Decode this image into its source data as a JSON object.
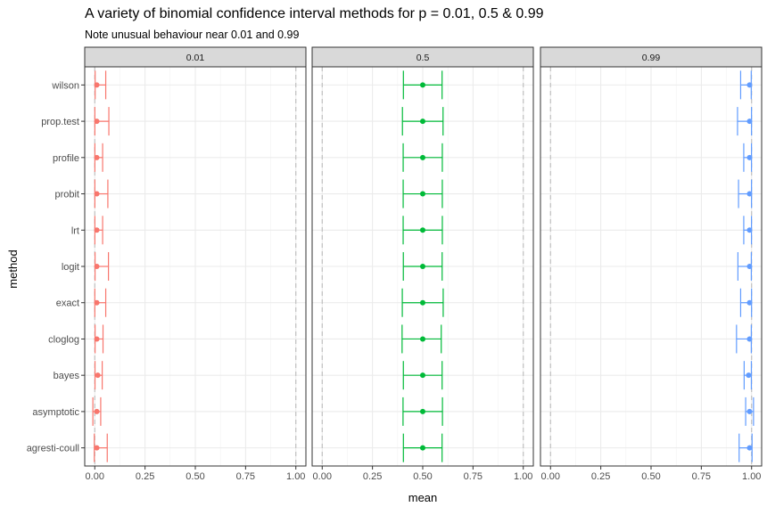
{
  "chart_data": {
    "type": "errorbar",
    "title": "A variety of binomial confidence interval methods for p = 0.01, 0.5 & 0.99",
    "subtitle": "Note unusual behaviour near 0.01 and 0.99",
    "xlabel": "mean",
    "ylabel": "method",
    "xlim": [
      -0.05,
      1.05
    ],
    "xticks": [
      "0.00",
      "0.25",
      "0.50",
      "0.75",
      "1.00"
    ],
    "xtick_values": [
      0,
      0.25,
      0.5,
      0.75,
      1.0
    ],
    "reference_lines": [
      0,
      1
    ],
    "grid": true,
    "legend": "none",
    "methods": [
      "wilson",
      "prop.test",
      "profile",
      "probit",
      "lrt",
      "logit",
      "exact",
      "cloglog",
      "bayes",
      "asymptotic",
      "agresti-coull"
    ],
    "panels": [
      {
        "label": "0.01",
        "color": "#F8766D",
        "points": [
          {
            "method": "wilson",
            "mean": 0.01,
            "lower": 0.0018,
            "upper": 0.0545
          },
          {
            "method": "prop.test",
            "mean": 0.01,
            "lower": 0.0005,
            "upper": 0.07
          },
          {
            "method": "profile",
            "mean": 0.01,
            "lower": 0.0006,
            "upper": 0.039
          },
          {
            "method": "probit",
            "mean": 0.01,
            "lower": 0.0005,
            "upper": 0.065
          },
          {
            "method": "lrt",
            "mean": 0.01,
            "lower": 0.0006,
            "upper": 0.039
          },
          {
            "method": "logit",
            "mean": 0.01,
            "lower": 0.0014,
            "upper": 0.068
          },
          {
            "method": "exact",
            "mean": 0.01,
            "lower": 0.0003,
            "upper": 0.0545
          },
          {
            "method": "cloglog",
            "mean": 0.01,
            "lower": 0.0015,
            "upper": 0.041
          },
          {
            "method": "bayes",
            "mean": 0.0149,
            "lower": 0.0012,
            "upper": 0.037
          },
          {
            "method": "asymptotic",
            "mean": 0.01,
            "lower": -0.0095,
            "upper": 0.0295
          },
          {
            "method": "agresti-coull",
            "mean": 0.01,
            "lower": -0.0024,
            "upper": 0.062
          }
        ]
      },
      {
        "label": "0.5",
        "color": "#00BA38",
        "points": [
          {
            "method": "wilson",
            "mean": 0.5,
            "lower": 0.4038,
            "upper": 0.5962
          },
          {
            "method": "prop.test",
            "mean": 0.5,
            "lower": 0.399,
            "upper": 0.601
          },
          {
            "method": "profile",
            "mean": 0.5,
            "lower": 0.4027,
            "upper": 0.5973
          },
          {
            "method": "probit",
            "mean": 0.5,
            "lower": 0.4027,
            "upper": 0.5973
          },
          {
            "method": "lrt",
            "mean": 0.5,
            "lower": 0.4026,
            "upper": 0.5974
          },
          {
            "method": "logit",
            "mean": 0.5,
            "lower": 0.4035,
            "upper": 0.5965
          },
          {
            "method": "exact",
            "mean": 0.5,
            "lower": 0.3983,
            "upper": 0.6017
          },
          {
            "method": "cloglog",
            "mean": 0.5,
            "lower": 0.3973,
            "upper": 0.592
          },
          {
            "method": "bayes",
            "mean": 0.5,
            "lower": 0.4036,
            "upper": 0.5964
          },
          {
            "method": "asymptotic",
            "mean": 0.5,
            "lower": 0.402,
            "upper": 0.598
          },
          {
            "method": "agresti-coull",
            "mean": 0.5,
            "lower": 0.4038,
            "upper": 0.5962
          }
        ]
      },
      {
        "label": "0.99",
        "color": "#619CFF",
        "points": [
          {
            "method": "wilson",
            "mean": 0.99,
            "lower": 0.9455,
            "upper": 0.9982
          },
          {
            "method": "prop.test",
            "mean": 0.99,
            "lower": 0.93,
            "upper": 0.9995
          },
          {
            "method": "profile",
            "mean": 0.99,
            "lower": 0.961,
            "upper": 0.9994
          },
          {
            "method": "probit",
            "mean": 0.99,
            "lower": 0.935,
            "upper": 0.9995
          },
          {
            "method": "lrt",
            "mean": 0.99,
            "lower": 0.961,
            "upper": 0.9994
          },
          {
            "method": "logit",
            "mean": 0.99,
            "lower": 0.932,
            "upper": 0.9986
          },
          {
            "method": "exact",
            "mean": 0.99,
            "lower": 0.9455,
            "upper": 0.9997
          },
          {
            "method": "cloglog",
            "mean": 0.99,
            "lower": 0.925,
            "upper": 0.9985
          },
          {
            "method": "bayes",
            "mean": 0.9851,
            "lower": 0.963,
            "upper": 0.9988
          },
          {
            "method": "asymptotic",
            "mean": 0.99,
            "lower": 0.9705,
            "upper": 1.0095
          },
          {
            "method": "agresti-coull",
            "mean": 0.99,
            "lower": 0.938,
            "upper": 1.0024
          }
        ]
      }
    ]
  }
}
